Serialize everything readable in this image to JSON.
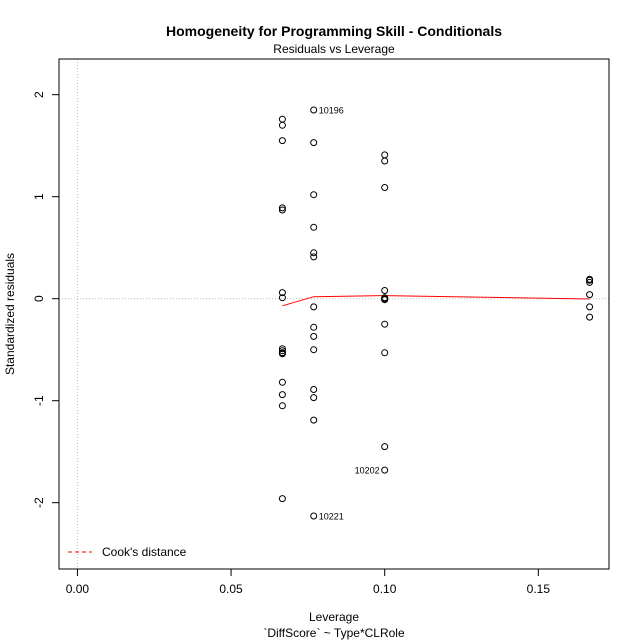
{
  "chart_data": {
    "type": "scatter",
    "title": "Homogeneity for Programming Skill - Conditionals",
    "subtitle": "Residuals vs Leverage",
    "xlabel": "Leverage",
    "xlabel2": "`DiffScore` ~ Type*CLRole",
    "ylabel": "Standardized residuals",
    "xlim": [
      -0.006,
      0.173
    ],
    "ylim": [
      -2.65,
      2.35
    ],
    "x_ticks": [
      0.0,
      0.05,
      0.1,
      0.15
    ],
    "x_tick_labels": [
      "0.00",
      "0.05",
      "0.10",
      "0.15"
    ],
    "y_ticks": [
      -2,
      -1,
      0,
      1,
      2
    ],
    "y_tick_labels": [
      "-2",
      "-1",
      "0",
      "1",
      "2"
    ],
    "grid": false,
    "reference_lines": {
      "x": 0,
      "y": 0,
      "color": "#bbbbbb"
    },
    "point_color": "#000000",
    "smooth_color": "#ff0000",
    "cook_color": "#ff0000",
    "legend": {
      "position": "bottom-left",
      "entries": [
        "Cook's distance"
      ]
    },
    "series": [
      {
        "x": [
          0.0667,
          0.0667,
          0.0667,
          0.0667,
          0.0667,
          0.0667,
          0.0667,
          0.0667,
          0.0667,
          0.0667,
          0.0667,
          0.0667,
          0.0667,
          0.0667,
          0.0667,
          0.0667,
          0.0769,
          0.0769,
          0.0769,
          0.0769,
          0.0769,
          0.0769,
          0.0769,
          0.0769,
          0.0769,
          0.0769,
          0.0769,
          0.0769,
          0.0769,
          0.0769,
          0.1,
          0.1,
          0.1,
          0.1,
          0.1,
          0.1,
          0.1,
          0.1,
          0.1,
          0.1,
          0.1,
          0.1,
          0.1667,
          0.1667,
          0.1667,
          0.1667,
          0.1667,
          0.1667
        ],
        "y": [
          1.76,
          1.7,
          1.55,
          0.89,
          0.87,
          0.06,
          0.01,
          -0.49,
          -0.51,
          -0.53,
          -0.54,
          -0.82,
          -0.94,
          -1.05,
          -1.96,
          -0.53,
          1.85,
          1.53,
          1.02,
          0.7,
          0.45,
          0.41,
          -0.08,
          -0.28,
          -0.37,
          -0.89,
          -0.97,
          -1.19,
          -2.13,
          -0.5,
          1.41,
          1.35,
          1.09,
          0.08,
          0.01,
          0.0,
          -0.01,
          -0.25,
          -0.53,
          -1.45,
          -1.68,
          0.0,
          0.18,
          0.16,
          0.04,
          -0.08,
          -0.18,
          0.19
        ]
      }
    ],
    "point_labels": [
      {
        "text": "10196",
        "x": 0.0769,
        "y": 1.85,
        "side": "right"
      },
      {
        "text": "10202",
        "x": 0.1,
        "y": -1.68,
        "side": "left"
      },
      {
        "text": "10221",
        "x": 0.0769,
        "y": -2.13,
        "side": "right"
      }
    ],
    "smooth_line": {
      "x": [
        0.0667,
        0.0769,
        0.1,
        0.1667
      ],
      "y": [
        -0.07,
        0.02,
        0.03,
        -0.003
      ]
    }
  }
}
